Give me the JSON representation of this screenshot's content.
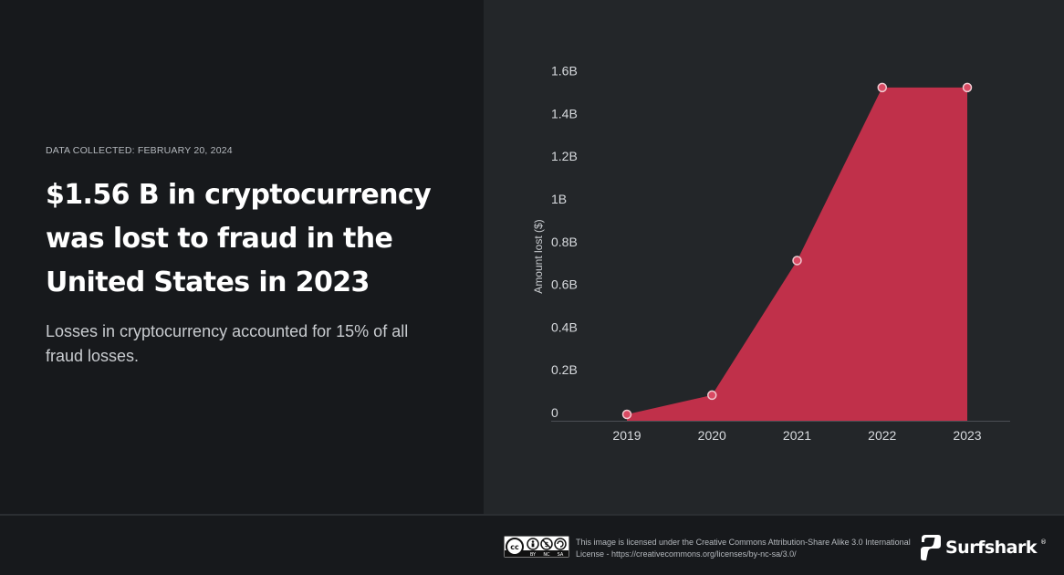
{
  "header": {
    "date_label": "DATA COLLECTED: FEBRUARY 20, 2024",
    "headline": "$1.56 B in cryptocurrency was lost to fraud in the United States in 2023",
    "subtext": "Losses in cryptocurrency accounted for 15% of all fraud losses."
  },
  "colors": {
    "area_fill": "#c0304a",
    "point_fill": "#d94a63",
    "point_stroke": "#f1c9d0",
    "background_left": "#17191c",
    "background_right": "#232629"
  },
  "chart_data": {
    "type": "area",
    "categories": [
      "2019",
      "2020",
      "2021",
      "2022",
      "2023"
    ],
    "values": [
      0.03,
      0.12,
      0.75,
      1.56,
      1.56
    ],
    "unit": "B",
    "ylabel": "Amount lost ($)",
    "xlabel": "",
    "ylim": [
      0,
      1.6
    ],
    "yticks": [
      "0",
      "0.2B",
      "0.4B",
      "0.6B",
      "0.8B",
      "1B",
      "1.2B",
      "1.4B",
      "1.6B"
    ],
    "grid": false
  },
  "footer": {
    "license_badge_icons": [
      "cc-icon",
      "by-icon",
      "nc-icon",
      "sa-icon"
    ],
    "license_badge_labels": [
      "BY",
      "NC",
      "SA"
    ],
    "license_text": "This image is licensed under the Creative Commons Attribution-Share Alike 3.0 International License - https://creativecommons.org/licenses/by-nc-sa/3.0/",
    "brand_name": "Surfshark",
    "brand_mark": "®"
  }
}
